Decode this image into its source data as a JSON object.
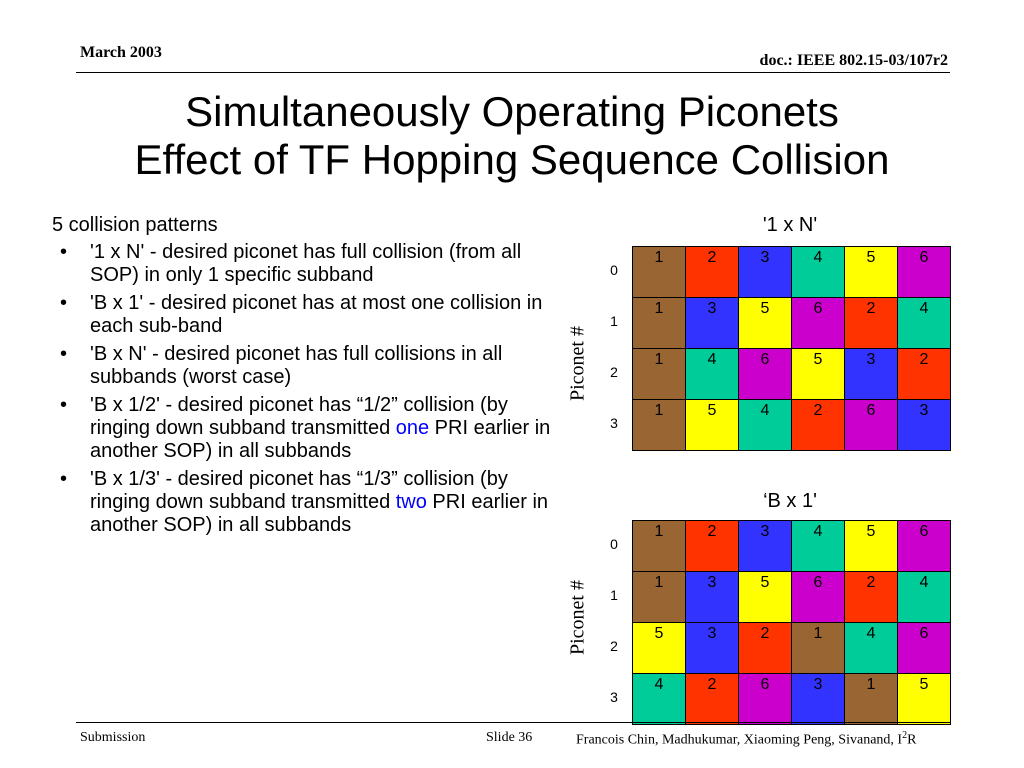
{
  "header": {
    "date": "March 2003",
    "doc": "doc.: IEEE 802.15-03/107r2"
  },
  "title": {
    "line1": "Simultaneously Operating Piconets",
    "line2": "Effect of TF Hopping Sequence Collision"
  },
  "body": {
    "intro": "5 collision patterns",
    "bullets": [
      {
        "pre": "'1 x N' - desired piconet has full collision (from all SOP) in only 1 specific subband",
        "hl": "",
        "post": ""
      },
      {
        "pre": "'B x 1' - desired piconet has at most one collision in each sub-band",
        "hl": "",
        "post": ""
      },
      {
        "pre": "'B x N' - desired piconet has full collisions in all subbands (worst case)",
        "hl": "",
        "post": ""
      },
      {
        "pre": "'B x 1/2' - desired piconet has “1/2” collision (by ringing down subband transmitted ",
        "hl": "one",
        "post": " PRI earlier in another SOP) in all subbands"
      },
      {
        "pre": "'B x 1/3' - desired piconet has “1/3” collision (by ringing down subband transmitted ",
        "hl": "two",
        "post": " PRI earlier in another SOP) in all subbands"
      }
    ],
    "bullet_char": "•"
  },
  "colors": {
    "1": "#996633",
    "2": "#ff3300",
    "3": "#3333ff",
    "4": "#00cc99",
    "5": "#ffff00",
    "6": "#cc00cc",
    "highlight": "#0000ff"
  },
  "tables": [
    {
      "title": "'1 x N'",
      "ylabel": "Piconet #",
      "row_labels": [
        "0",
        "1",
        "2",
        "3"
      ],
      "rows": [
        [
          1,
          2,
          3,
          4,
          5,
          6
        ],
        [
          1,
          3,
          5,
          6,
          2,
          4
        ],
        [
          1,
          4,
          6,
          5,
          3,
          2
        ],
        [
          1,
          5,
          4,
          2,
          6,
          3
        ]
      ]
    },
    {
      "title": "‘B x 1'",
      "ylabel": "Piconet #",
      "row_labels": [
        "0",
        "1",
        "2",
        "3"
      ],
      "rows": [
        [
          1,
          2,
          3,
          4,
          5,
          6
        ],
        [
          1,
          3,
          5,
          6,
          2,
          4
        ],
        [
          5,
          3,
          2,
          1,
          4,
          6
        ],
        [
          4,
          2,
          6,
          3,
          1,
          5
        ]
      ]
    }
  ],
  "footer": {
    "left": "Submission",
    "slide": "Slide 36",
    "authors_pre": "Francois Chin, Madhukumar, Xiaoming Peng, Sivanand, I",
    "authors_sup": "2",
    "authors_post": "R"
  }
}
